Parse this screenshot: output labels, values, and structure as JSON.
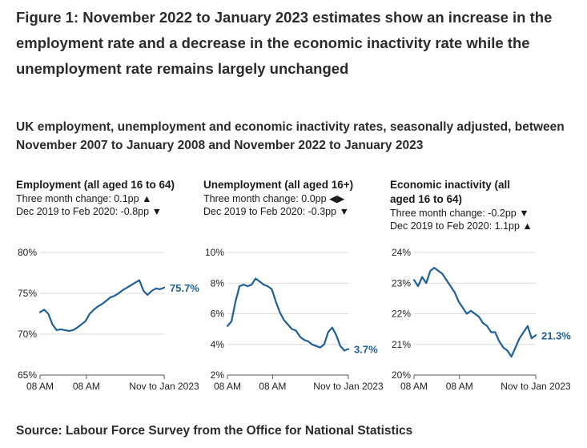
{
  "figure": {
    "title": "Figure 1: November 2022 to January 2023 estimates show an increase in the employment rate and a decrease in the economic inactivity rate while the unemployment rate remains largely unchanged",
    "subtitle": "UK employment, unemployment and economic inactivity rates, seasonally adjusted, between November 2007 to January 2008 and November 2022 to January 2023",
    "source": "Source: Labour Force Survey from the Office for National Statistics"
  },
  "colors": {
    "line": "#206095",
    "grid": "#d9d9d9",
    "axis": "#555555",
    "text": "#222222"
  },
  "panels": [
    {
      "title": "Employment (all aged 16 to 64)",
      "change_text": "Three month change: 0.1pp",
      "change_icon": "up-triangle",
      "change_symbol": "▲",
      "covid_text": "Dec 2019 to Feb 2020: -0.8pp",
      "covid_icon": "down-triangle",
      "covid_symbol": "▼"
    },
    {
      "title": "Unemployment (all aged 16+)",
      "change_text": "Three month change: 0.0pp",
      "change_icon": "left-right-triangles",
      "change_symbol": "◀▶",
      "covid_text": "Dec 2019 to Feb 2020: -0.3pp",
      "covid_icon": "down-triangle",
      "covid_symbol": "▼"
    },
    {
      "title": "Economic inactivity (all aged 16 to 64)",
      "change_text": "Three month change: -0.2pp",
      "change_icon": "down-triangle",
      "change_symbol": "▼",
      "covid_text": "Dec 2019 to Feb 2020: 1.1pp",
      "covid_icon": "up-triangle",
      "covid_symbol": "▲"
    }
  ],
  "chart_data": [
    {
      "type": "line",
      "title": "Employment (all aged 16 to 64)",
      "ylabel": "",
      "ylim": [
        65,
        80
      ],
      "yticks": [
        80,
        75,
        70,
        65
      ],
      "ytick_labels": [
        "80%",
        "75%",
        "70%",
        "65%"
      ],
      "xlim": [
        2008.0,
        2023.0
      ],
      "xtick_labels": [
        "08 AM",
        "08 AM",
        "Nov to Jan 2023"
      ],
      "xtick_positions": [
        2008.0,
        2013.6,
        2023.0
      ],
      "last_label": "75.7%",
      "x": [
        2008.0,
        2008.5,
        2009.0,
        2009.5,
        2010.0,
        2010.5,
        2011.0,
        2011.5,
        2012.0,
        2012.5,
        2013.0,
        2013.5,
        2014.0,
        2014.5,
        2015.0,
        2015.5,
        2016.0,
        2016.5,
        2017.0,
        2017.5,
        2018.0,
        2018.5,
        2019.0,
        2019.5,
        2020.0,
        2020.5,
        2021.0,
        2021.5,
        2022.0,
        2022.5,
        2023.0
      ],
      "values": [
        72.7,
        73.0,
        72.5,
        71.2,
        70.5,
        70.6,
        70.5,
        70.4,
        70.5,
        70.8,
        71.2,
        71.6,
        72.5,
        73.0,
        73.4,
        73.7,
        74.1,
        74.5,
        74.7,
        75.0,
        75.4,
        75.7,
        76.0,
        76.3,
        76.6,
        75.3,
        74.8,
        75.3,
        75.6,
        75.5,
        75.7
      ]
    },
    {
      "type": "line",
      "title": "Unemployment (all aged 16+)",
      "ylabel": "",
      "ylim": [
        2,
        10
      ],
      "yticks": [
        10,
        8,
        6,
        4,
        2
      ],
      "ytick_labels": [
        "10%",
        "8%",
        "6%",
        "4%",
        "2%"
      ],
      "xlim": [
        2008.0,
        2023.0
      ],
      "xtick_labels": [
        "08 AM",
        "08 AM",
        "Nov to Jan 2023"
      ],
      "xtick_positions": [
        2008.0,
        2013.6,
        2023.0
      ],
      "last_label": "3.7%",
      "x": [
        2008.0,
        2008.5,
        2009.0,
        2009.5,
        2010.0,
        2010.5,
        2011.0,
        2011.5,
        2012.0,
        2012.5,
        2013.0,
        2013.5,
        2014.0,
        2014.5,
        2015.0,
        2015.5,
        2016.0,
        2016.5,
        2017.0,
        2017.5,
        2018.0,
        2018.5,
        2019.0,
        2019.5,
        2020.0,
        2020.5,
        2021.0,
        2021.5,
        2022.0,
        2022.5,
        2023.0
      ],
      "values": [
        5.2,
        5.5,
        6.8,
        7.8,
        7.9,
        7.8,
        7.9,
        8.3,
        8.1,
        7.9,
        7.8,
        7.6,
        6.8,
        6.1,
        5.6,
        5.3,
        5.0,
        4.9,
        4.5,
        4.3,
        4.2,
        4.0,
        3.9,
        3.8,
        4.0,
        4.8,
        5.1,
        4.6,
        3.9,
        3.6,
        3.7
      ]
    },
    {
      "type": "line",
      "title": "Economic inactivity (all aged 16 to 64)",
      "ylabel": "",
      "ylim": [
        20,
        24
      ],
      "yticks": [
        24,
        23,
        22,
        21,
        20
      ],
      "ytick_labels": [
        "24%",
        "23%",
        "22%",
        "21%",
        "20%"
      ],
      "xlim": [
        2008.0,
        2023.0
      ],
      "xtick_labels": [
        "08 AM",
        "08 AM",
        "Nov to Jan 2023"
      ],
      "xtick_positions": [
        2008.0,
        2013.6,
        2023.0
      ],
      "last_label": "21.3%",
      "x": [
        2008.0,
        2008.5,
        2009.0,
        2009.5,
        2010.0,
        2010.5,
        2011.0,
        2011.5,
        2012.0,
        2012.5,
        2013.0,
        2013.5,
        2014.0,
        2014.5,
        2015.0,
        2015.5,
        2016.0,
        2016.5,
        2017.0,
        2017.5,
        2018.0,
        2018.5,
        2019.0,
        2019.5,
        2020.0,
        2020.5,
        2021.0,
        2021.5,
        2022.0,
        2022.5,
        2023.0
      ],
      "values": [
        23.1,
        22.9,
        23.2,
        23.0,
        23.4,
        23.5,
        23.4,
        23.3,
        23.1,
        22.9,
        22.7,
        22.4,
        22.2,
        22.0,
        22.1,
        22.0,
        21.9,
        21.7,
        21.6,
        21.4,
        21.4,
        21.1,
        20.9,
        20.8,
        20.6,
        20.9,
        21.2,
        21.4,
        21.6,
        21.2,
        21.3
      ]
    }
  ]
}
